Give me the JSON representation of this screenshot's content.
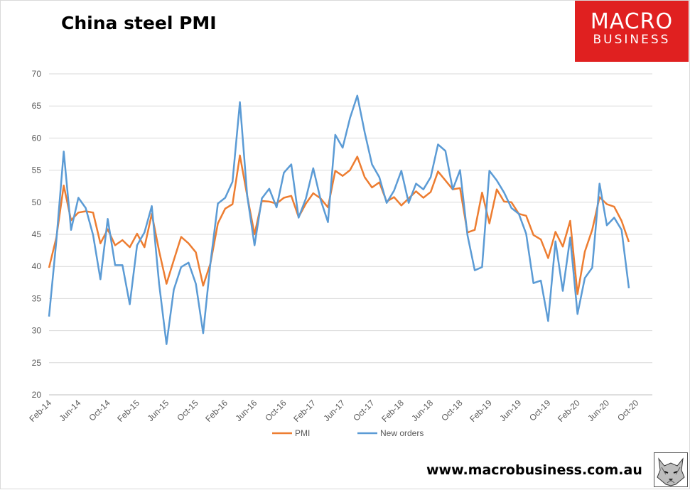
{
  "header": {
    "title": "China steel PMI"
  },
  "brand": {
    "logo_line1": "MACRO",
    "logo_line2": "BUSINESS",
    "website": "www.macrobusiness.com.au",
    "colors": {
      "logo_bg": "#e02020",
      "logo_text": "#ffffff"
    }
  },
  "chart_data": {
    "type": "line",
    "title": "China steel PMI",
    "xlabel": "",
    "ylabel": "",
    "ylim": [
      20,
      70
    ],
    "yticks": [
      20,
      25,
      30,
      35,
      40,
      45,
      50,
      55,
      60,
      65,
      70
    ],
    "grid": true,
    "legend_position": "bottom",
    "x_start": "Feb-14",
    "x_tick_labels": [
      "Feb-14",
      "Jun-14",
      "Oct-14",
      "Feb-15",
      "Jun-15",
      "Oct-15",
      "Feb-16",
      "Jun-16",
      "Oct-16",
      "Feb-17",
      "Jun-17",
      "Oct-17",
      "Feb-18",
      "Jun-18",
      "Oct-18",
      "Feb-19",
      "Jun-19",
      "Oct-19",
      "Feb-20",
      "Jun-20",
      "Oct-20"
    ],
    "series": [
      {
        "name": "PMI",
        "color": "#ed7d31",
        "values": [
          39.8,
          44.5,
          52.6,
          47.2,
          48.4,
          48.6,
          48.4,
          43.6,
          45.8,
          43.3,
          44.1,
          43.0,
          45.1,
          43.0,
          48.2,
          42.4,
          37.3,
          41.0,
          44.6,
          43.6,
          42.2,
          37.0,
          40.5,
          46.7,
          49.0,
          49.7,
          57.3,
          51.0,
          45.0,
          50.2,
          50.1,
          49.8,
          50.7,
          51.0,
          47.7,
          49.8,
          51.4,
          50.6,
          49.2,
          54.9,
          54.1,
          55.0,
          57.1,
          53.9,
          52.3,
          53.1,
          50.1,
          50.8,
          49.5,
          50.6,
          51.7,
          50.7,
          51.6,
          54.8,
          53.4,
          52.0,
          52.2,
          45.3,
          45.7,
          51.5,
          46.7,
          52.0,
          50.1,
          50.0,
          48.2,
          47.9,
          44.9,
          44.2,
          41.3,
          45.4,
          43.1,
          47.1,
          35.7,
          42.3,
          45.7,
          50.8,
          49.7,
          49.3,
          47.1,
          43.8
        ]
      },
      {
        "name": "New orders",
        "color": "#5b9bd5",
        "values": [
          32.2,
          44.0,
          57.9,
          45.7,
          50.7,
          49.1,
          44.9,
          38.0,
          47.4,
          40.2,
          40.2,
          34.1,
          43.3,
          45.3,
          49.4,
          37.3,
          27.9,
          36.4,
          39.9,
          40.6,
          37.3,
          29.6,
          40.6,
          49.8,
          50.7,
          53.2,
          65.6,
          51.0,
          43.3,
          50.6,
          52.1,
          49.2,
          54.6,
          55.9,
          47.6,
          50.6,
          55.3,
          50.4,
          46.9,
          60.5,
          58.5,
          63.1,
          66.6,
          60.9,
          55.9,
          53.9,
          49.9,
          51.8,
          54.9,
          49.9,
          52.9,
          52.0,
          53.9,
          59.0,
          58.0,
          52.0,
          55.0,
          44.9,
          39.4,
          39.9,
          54.9,
          53.4,
          51.5,
          49.1,
          48.2,
          45.1,
          37.4,
          37.8,
          31.5,
          43.9,
          36.2,
          44.5,
          32.6,
          38.2,
          39.8,
          52.9,
          46.4,
          47.6,
          45.7,
          36.6
        ]
      }
    ]
  }
}
